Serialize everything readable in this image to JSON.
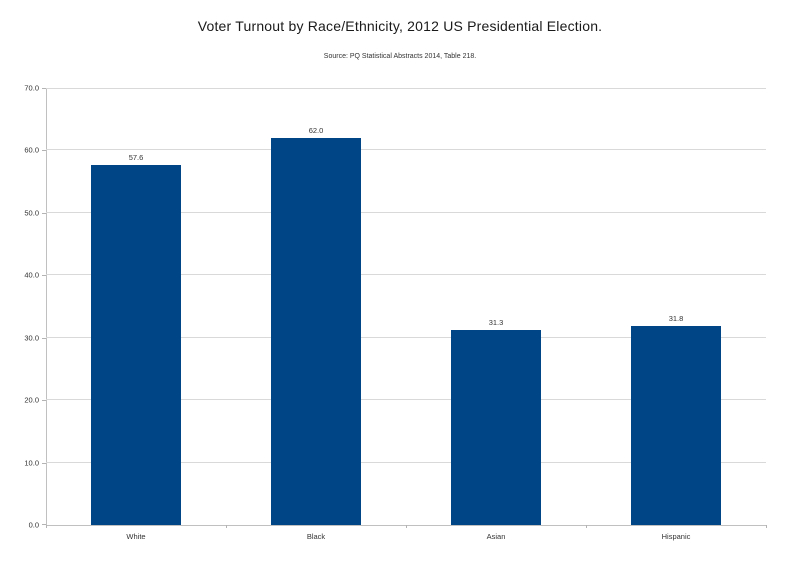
{
  "chart_data": {
    "type": "bar",
    "title": "Voter Turnout by Race/Ethnicity, 2012 US Presidential Election.",
    "subtitle": "Source: PQ Statistical Abstracts 2014, Table 218.",
    "categories": [
      "White",
      "Black",
      "Asian",
      "Hispanic"
    ],
    "values": [
      57.6,
      62.0,
      31.3,
      31.8
    ],
    "data_labels": [
      "57.6",
      "62.0",
      "31.3",
      "31.8"
    ],
    "xlabel": "",
    "ylabel": "",
    "ylim": [
      0,
      70
    ],
    "y_tick_step": 10,
    "y_tick_labels": [
      "0.0",
      "10.0",
      "20.0",
      "30.0",
      "40.0",
      "50.0",
      "60.0",
      "70.0"
    ],
    "grid": true,
    "legend_position": "none",
    "colors": {
      "bar": "#004586",
      "gridline": "#d9d9d9",
      "axis": "#c0c0c0",
      "tick": "#b3b3b3",
      "title_text": "#1a1a1a",
      "label_text": "#333333",
      "background": "#ffffff"
    }
  }
}
